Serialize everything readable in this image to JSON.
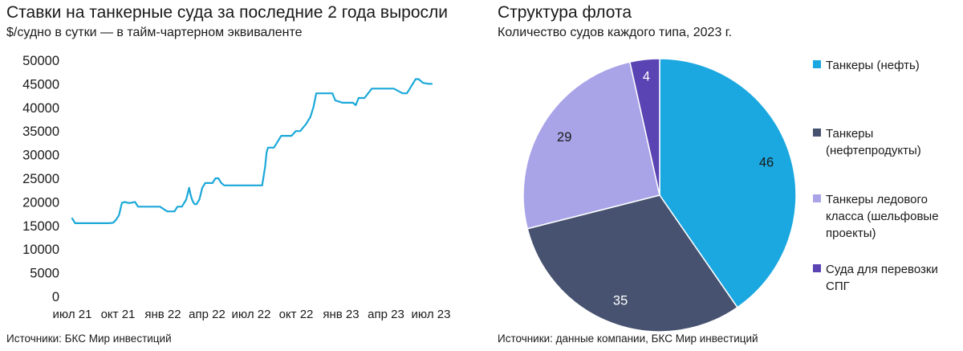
{
  "left": {
    "title": "Ставки на танкерные суда за последние 2 года выросли",
    "subtitle": "$/судно в сутки — в тайм-чартерном эквиваленте",
    "source": "Источники: БКС Мир инвестиций"
  },
  "right": {
    "title": "Структура флота",
    "subtitle": "Количество судов каждого типа, 2023 г.",
    "source": "Источники: данные компании, БКС Мир инвестиций"
  },
  "chart_data": [
    {
      "type": "line",
      "ylim": [
        0,
        50000
      ],
      "yticks": [
        0,
        5000,
        10000,
        15000,
        20000,
        25000,
        30000,
        35000,
        40000,
        45000,
        50000
      ],
      "ytick_labels": [
        "0",
        "5000",
        "10000",
        "15000",
        "20000",
        "25000",
        "30000",
        "35000",
        "40000",
        "45000",
        "50000"
      ],
      "xticks": [
        "июл 21",
        "окт 21",
        "янв 22",
        "апр 22",
        "июл 22",
        "окт 22",
        "янв 23",
        "апр 23",
        "июл 23"
      ],
      "grid": false,
      "color": "#1ba8d8",
      "series": [
        {
          "x": [
            0,
            0.2,
            0.5,
            1.0,
            1.5,
            2.0,
            2.5,
            2.8,
            3.0,
            3.2,
            3.4,
            3.6,
            3.8,
            4.0,
            4.3,
            4.5,
            5.0,
            5.5,
            5.8,
            6.0,
            6.5,
            6.8,
            7.0,
            7.2,
            7.5,
            7.8,
            8.0,
            8.1,
            8.2,
            8.3,
            8.4,
            8.5,
            8.7,
            8.9,
            9.0,
            9.1,
            9.3,
            9.6,
            9.8,
            10.0,
            10.2,
            10.4,
            10.6,
            10.8,
            11.0,
            11.5,
            12.0,
            12.5,
            13.0,
            13.2,
            13.3,
            13.4,
            13.6,
            13.8,
            14.0,
            14.3,
            14.6,
            14.9,
            15.0,
            15.3,
            15.6,
            16.0,
            16.3,
            16.5,
            16.7,
            17.0,
            17.2,
            17.4,
            17.6,
            17.8,
            18.0,
            18.5,
            19.0,
            19.2,
            19.4,
            19.6,
            20.0,
            20.5,
            20.7,
            21.0,
            21.3,
            21.5,
            21.8,
            22.0,
            22.3,
            22.6,
            22.9,
            23.1,
            23.3,
            23.5,
            23.7,
            24.0,
            24.4,
            24.6
          ],
          "y": [
            16500,
            15500,
            15500,
            15500,
            15500,
            15500,
            15500,
            15600,
            16200,
            17200,
            19800,
            20000,
            19800,
            19800,
            20000,
            19000,
            19000,
            19000,
            19000,
            19000,
            18000,
            18000,
            18000,
            19000,
            19000,
            20500,
            23000,
            21500,
            20500,
            19800,
            19500,
            19500,
            20500,
            23000,
            23500,
            24000,
            24000,
            24000,
            25000,
            25000,
            24000,
            23500,
            23500,
            23500,
            23500,
            23500,
            23500,
            23500,
            23500,
            27500,
            30500,
            31500,
            31500,
            31500,
            32500,
            34000,
            34000,
            34000,
            34000,
            35000,
            35000,
            36500,
            38000,
            40000,
            43000,
            43000,
            43000,
            43000,
            43000,
            43000,
            41500,
            41000,
            41000,
            41000,
            40500,
            42000,
            42000,
            44000,
            44000,
            44000,
            44000,
            44000,
            44000,
            44000,
            43500,
            43000,
            43000,
            44000,
            45000,
            46000,
            46000,
            45200,
            45000,
            45000
          ]
        }
      ]
    },
    {
      "type": "pie",
      "labels": [
        "Танкеры (нефть)",
        "Танкеры (нефтепродукты)",
        "Танкеры ледового класса (шельфовые проекты)",
        "Суда для перевозки СПГ"
      ],
      "values": [
        46,
        35,
        29,
        4
      ],
      "value_labels": [
        "46",
        "35",
        "29",
        "4"
      ],
      "colors": [
        "#1ba8e0",
        "#46526f",
        "#a9a4e8",
        "#5a43b2"
      ],
      "value_label_colors": [
        "#1a1a1a",
        "#ffffff",
        "#1a1a1a",
        "#ffffff"
      ],
      "legend": "right"
    }
  ]
}
